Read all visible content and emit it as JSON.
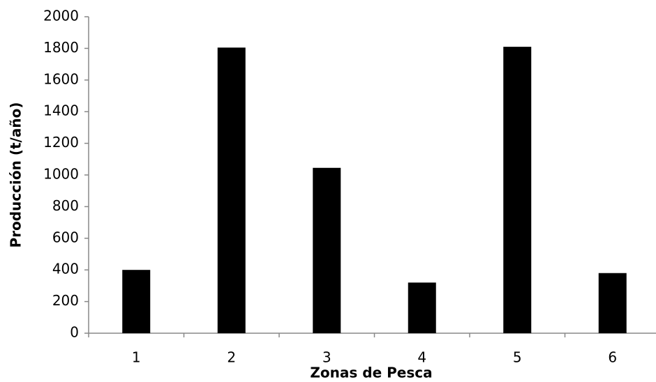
{
  "chart_data": {
    "type": "bar",
    "x_label": "Zonas de Pesca",
    "y_label": "Producción (t/año)",
    "categories": [
      "1",
      "2",
      "3",
      "4",
      "5",
      "6"
    ],
    "values": [
      400,
      1805,
      1045,
      320,
      1810,
      380
    ],
    "color": "#000000",
    "ylim": [
      0,
      2000
    ],
    "yticks": [
      0,
      200,
      400,
      600,
      800,
      1000,
      1200,
      1400,
      1600,
      1800,
      2000
    ],
    "grid": false
  }
}
